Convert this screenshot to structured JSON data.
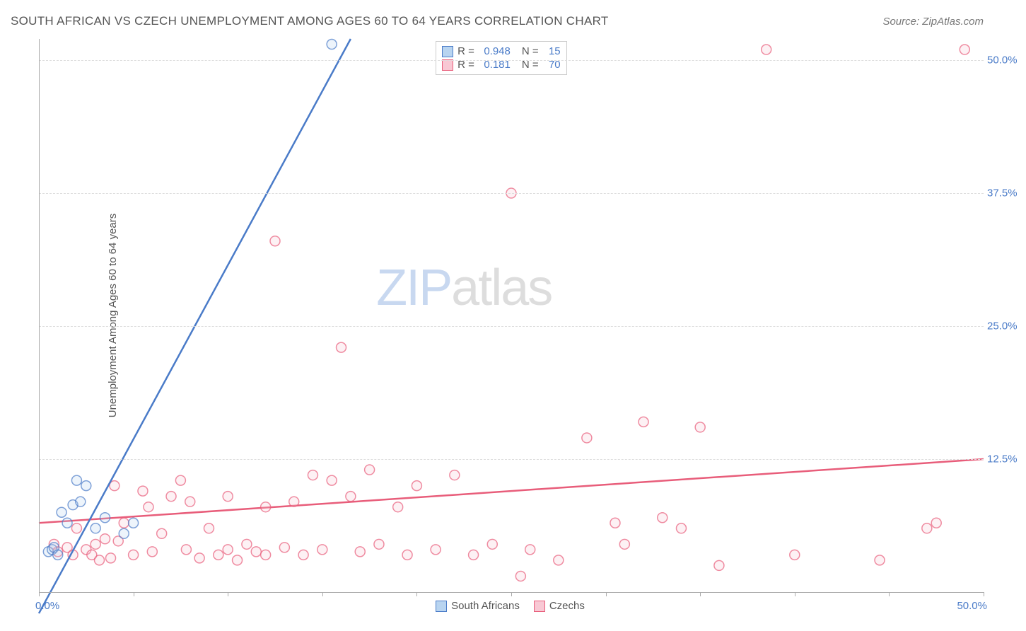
{
  "title": "SOUTH AFRICAN VS CZECH UNEMPLOYMENT AMONG AGES 60 TO 64 YEARS CORRELATION CHART",
  "source": "Source: ZipAtlas.com",
  "y_label": "Unemployment Among Ages 60 to 64 years",
  "watermark_zip": "ZIP",
  "watermark_atlas": "atlas",
  "chart": {
    "type": "scatter",
    "xlim": [
      0,
      50
    ],
    "ylim": [
      0,
      52
    ],
    "x_tick_positions": [
      0,
      5,
      10,
      15,
      20,
      25,
      30,
      35,
      40,
      45,
      50
    ],
    "x_tick_labels_shown": {
      "left": "0.0%",
      "right": "50.0%"
    },
    "y_grid_positions": [
      12.5,
      25.0,
      37.5,
      50.0
    ],
    "y_tick_labels": [
      "12.5%",
      "25.0%",
      "37.5%",
      "50.0%"
    ],
    "background_color": "#ffffff",
    "grid_color": "#dddddd",
    "grid_style": "dashed",
    "axis_color": "#aaaaaa",
    "tick_label_color": "#4a7bc8",
    "label_fontsize": 15,
    "title_fontsize": 17,
    "title_color": "#555555",
    "marker_radius": 7,
    "marker_stroke_width": 1.5,
    "marker_fill_opacity": 0.25,
    "trendline_width": 2.5
  },
  "series": {
    "south_africans": {
      "label": "South Africans",
      "color_stroke": "#4a7bc8",
      "color_fill": "#b8d4f0",
      "R": "0.948",
      "N": "15",
      "trendline": {
        "x1": 0,
        "y1": -2,
        "x2": 16.5,
        "y2": 52
      },
      "points": [
        [
          0.5,
          3.8
        ],
        [
          0.7,
          4.0
        ],
        [
          0.8,
          4.2
        ],
        [
          1.0,
          3.5
        ],
        [
          1.2,
          7.5
        ],
        [
          1.5,
          6.5
        ],
        [
          1.8,
          8.2
        ],
        [
          2.0,
          10.5
        ],
        [
          2.2,
          8.5
        ],
        [
          2.5,
          10.0
        ],
        [
          3.0,
          6.0
        ],
        [
          3.5,
          7.0
        ],
        [
          4.5,
          5.5
        ],
        [
          5.0,
          6.5
        ],
        [
          15.5,
          51.5
        ]
      ]
    },
    "czechs": {
      "label": "Czechs",
      "color_stroke": "#e85d7a",
      "color_fill": "#f8c8d4",
      "R": "0.181",
      "N": "70",
      "trendline": {
        "x1": 0,
        "y1": 6.5,
        "x2": 50,
        "y2": 12.5
      },
      "points": [
        [
          0.8,
          4.5
        ],
        [
          1.0,
          3.8
        ],
        [
          1.5,
          4.2
        ],
        [
          1.8,
          3.5
        ],
        [
          2.0,
          6.0
        ],
        [
          2.5,
          4.0
        ],
        [
          2.8,
          3.5
        ],
        [
          3.0,
          4.5
        ],
        [
          3.2,
          3.0
        ],
        [
          3.5,
          5.0
        ],
        [
          3.8,
          3.2
        ],
        [
          4.0,
          10.0
        ],
        [
          4.2,
          4.8
        ],
        [
          4.5,
          6.5
        ],
        [
          5.0,
          3.5
        ],
        [
          5.5,
          9.5
        ],
        [
          5.8,
          8.0
        ],
        [
          6.0,
          3.8
        ],
        [
          6.5,
          5.5
        ],
        [
          7.0,
          9.0
        ],
        [
          7.5,
          10.5
        ],
        [
          7.8,
          4.0
        ],
        [
          8.0,
          8.5
        ],
        [
          8.5,
          3.2
        ],
        [
          9.0,
          6.0
        ],
        [
          9.5,
          3.5
        ],
        [
          10.0,
          4.0
        ],
        [
          10.0,
          9.0
        ],
        [
          10.5,
          3.0
        ],
        [
          11.0,
          4.5
        ],
        [
          11.5,
          3.8
        ],
        [
          12.0,
          8.0
        ],
        [
          12.0,
          3.5
        ],
        [
          12.5,
          33.0
        ],
        [
          13.0,
          4.2
        ],
        [
          13.5,
          8.5
        ],
        [
          14.0,
          3.5
        ],
        [
          14.5,
          11.0
        ],
        [
          15.0,
          4.0
        ],
        [
          15.5,
          10.5
        ],
        [
          16.0,
          23.0
        ],
        [
          16.5,
          9.0
        ],
        [
          17.0,
          3.8
        ],
        [
          17.5,
          11.5
        ],
        [
          18.0,
          4.5
        ],
        [
          19.0,
          8.0
        ],
        [
          19.5,
          3.5
        ],
        [
          20.0,
          10.0
        ],
        [
          21.0,
          4.0
        ],
        [
          22.0,
          11.0
        ],
        [
          23.0,
          3.5
        ],
        [
          24.0,
          4.5
        ],
        [
          25.0,
          37.5
        ],
        [
          25.5,
          1.5
        ],
        [
          26.0,
          4.0
        ],
        [
          27.5,
          3.0
        ],
        [
          29.0,
          14.5
        ],
        [
          30.5,
          6.5
        ],
        [
          31.0,
          4.5
        ],
        [
          32.0,
          16.0
        ],
        [
          33.0,
          7.0
        ],
        [
          34.0,
          6.0
        ],
        [
          35.0,
          15.5
        ],
        [
          36.0,
          2.5
        ],
        [
          38.5,
          51.0
        ],
        [
          40.0,
          3.5
        ],
        [
          44.5,
          3.0
        ],
        [
          47.0,
          6.0
        ],
        [
          47.5,
          6.5
        ],
        [
          49.0,
          51.0
        ]
      ]
    }
  },
  "stats_labels": {
    "R": "R =",
    "N": "N ="
  }
}
